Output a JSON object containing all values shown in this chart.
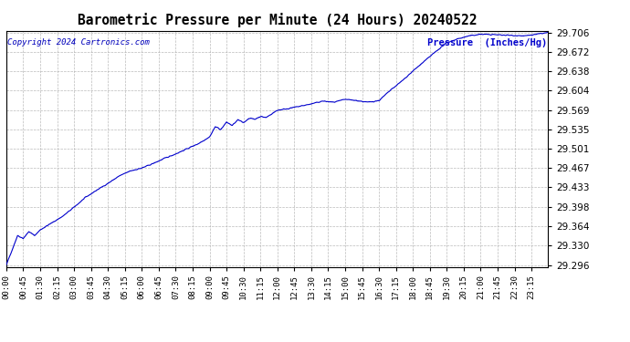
{
  "title": "Barometric Pressure per Minute (24 Hours) 20240522",
  "copyright": "Copyright 2024 Cartronics.com",
  "ylabel": "Pressure  (Inches/Hg)",
  "line_color": "#0000CC",
  "background_color": "#ffffff",
  "grid_color": "#aaaaaa",
  "title_color": "#000000",
  "ylabel_color": "#0000CC",
  "copyright_color": "#0000BB",
  "ylim_min": 29.296,
  "ylim_max": 29.706,
  "yticks": [
    29.296,
    29.33,
    29.364,
    29.398,
    29.433,
    29.467,
    29.501,
    29.535,
    29.569,
    29.604,
    29.638,
    29.672,
    29.706
  ],
  "xtick_labels": [
    "00:00",
    "00:45",
    "01:30",
    "02:15",
    "03:00",
    "03:45",
    "04:30",
    "05:15",
    "06:00",
    "06:45",
    "07:30",
    "08:15",
    "09:00",
    "09:45",
    "10:30",
    "11:15",
    "12:00",
    "12:45",
    "13:30",
    "14:15",
    "15:00",
    "15:45",
    "16:30",
    "17:15",
    "18:00",
    "18:45",
    "19:30",
    "20:15",
    "21:00",
    "21:45",
    "22:30",
    "23:15"
  ],
  "num_minutes": 1440,
  "waypoints": [
    [
      0,
      29.296
    ],
    [
      30,
      29.348
    ],
    [
      45,
      29.343
    ],
    [
      60,
      29.355
    ],
    [
      75,
      29.348
    ],
    [
      90,
      29.358
    ],
    [
      120,
      29.37
    ],
    [
      150,
      29.382
    ],
    [
      180,
      29.398
    ],
    [
      210,
      29.415
    ],
    [
      240,
      29.428
    ],
    [
      270,
      29.44
    ],
    [
      300,
      29.453
    ],
    [
      330,
      29.462
    ],
    [
      360,
      29.467
    ],
    [
      390,
      29.475
    ],
    [
      420,
      29.484
    ],
    [
      450,
      29.492
    ],
    [
      480,
      29.501
    ],
    [
      510,
      29.51
    ],
    [
      540,
      29.522
    ],
    [
      555,
      29.54
    ],
    [
      570,
      29.535
    ],
    [
      585,
      29.548
    ],
    [
      600,
      29.542
    ],
    [
      615,
      29.552
    ],
    [
      630,
      29.547
    ],
    [
      645,
      29.555
    ],
    [
      660,
      29.553
    ],
    [
      675,
      29.558
    ],
    [
      690,
      29.556
    ],
    [
      720,
      29.569
    ],
    [
      750,
      29.572
    ],
    [
      780,
      29.576
    ],
    [
      810,
      29.58
    ],
    [
      840,
      29.585
    ],
    [
      870,
      29.583
    ],
    [
      900,
      29.588
    ],
    [
      930,
      29.586
    ],
    [
      960,
      29.583
    ],
    [
      990,
      29.586
    ],
    [
      1020,
      29.604
    ],
    [
      1050,
      29.62
    ],
    [
      1080,
      29.638
    ],
    [
      1110,
      29.655
    ],
    [
      1140,
      29.672
    ],
    [
      1170,
      29.688
    ],
    [
      1200,
      29.695
    ],
    [
      1230,
      29.7
    ],
    [
      1260,
      29.703
    ],
    [
      1380,
      29.7
    ],
    [
      1410,
      29.703
    ],
    [
      1439,
      29.706
    ]
  ]
}
